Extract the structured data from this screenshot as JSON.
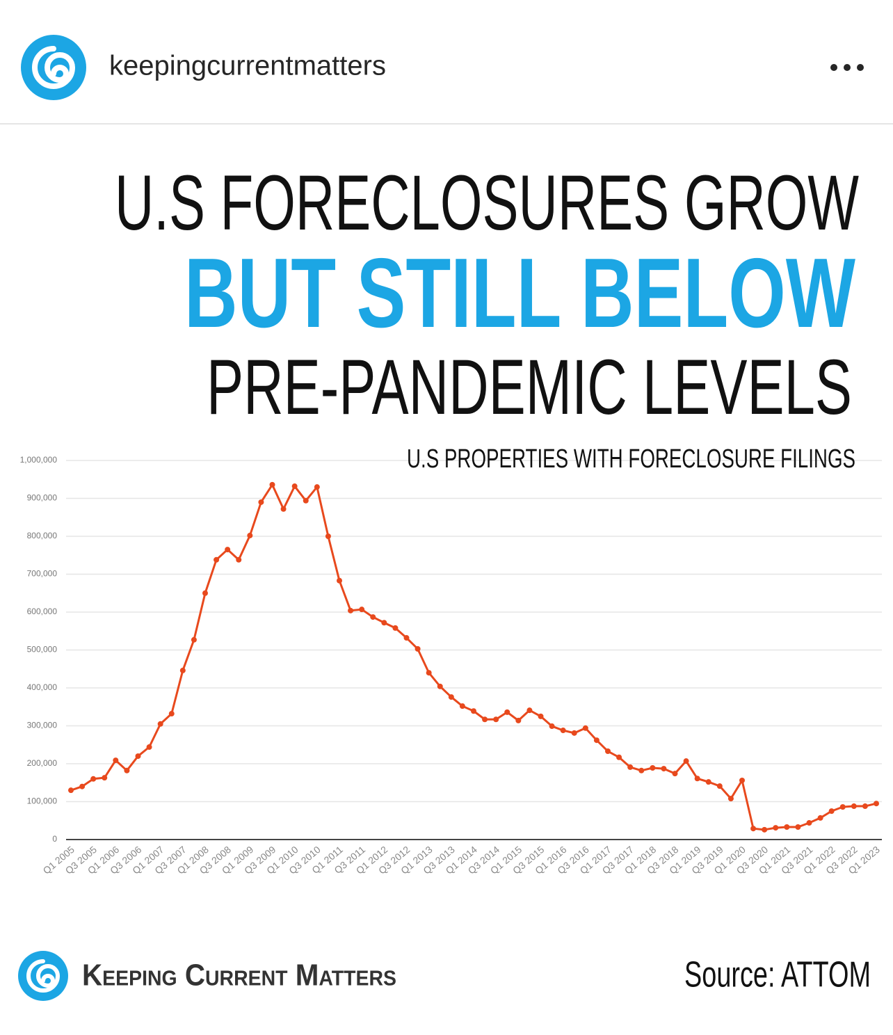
{
  "post": {
    "username": "keepingcurrentmatters"
  },
  "chart_data": {
    "type": "line",
    "title": [
      "U.S FORECLOSURES GROW",
      "BUT STILL BELOW",
      "PRE-PANDEMIC LEVELS"
    ],
    "subtitle": "U.S PROPERTIES WITH FORECLOSURE FILINGS",
    "categories": [
      "Q1 2005",
      null,
      "Q3 2005",
      null,
      "Q1 2006",
      null,
      "Q3 2006",
      null,
      "Q1 2007",
      null,
      "Q3 2007",
      null,
      "Q1 2008",
      null,
      "Q3 2008",
      null,
      "Q1 2009",
      null,
      "Q3 2009",
      null,
      "Q1 2010",
      null,
      "Q3 2010",
      null,
      "Q1 2011",
      null,
      "Q3 2011",
      null,
      "Q1 2012",
      null,
      "Q3 2012",
      null,
      "Q1 2013",
      null,
      "Q3 2013",
      null,
      "Q1 2014",
      null,
      "Q3 2014",
      null,
      "Q1 2015",
      null,
      "Q3 2015",
      null,
      "Q1 2016",
      null,
      "Q3 2016",
      null,
      "Q1 2017",
      null,
      "Q3 2017",
      null,
      "Q1 2018",
      null,
      "Q3 2018",
      null,
      "Q1 2019",
      null,
      "Q3 2019",
      null,
      "Q1 2020",
      null,
      "Q3 2020",
      null,
      "Q1 2021",
      null,
      "Q3 2021",
      null,
      "Q1 2022",
      null,
      "Q3 2022",
      null,
      "Q1 2023"
    ],
    "values": [
      130000,
      140000,
      160000,
      163000,
      209000,
      182000,
      220000,
      244000,
      305000,
      332000,
      446000,
      527000,
      650000,
      738000,
      765000,
      738000,
      802000,
      890000,
      936000,
      872000,
      932000,
      894000,
      930000,
      800000,
      683000,
      604000,
      607000,
      587000,
      572000,
      558000,
      532000,
      503000,
      440000,
      404000,
      376000,
      352000,
      339000,
      317000,
      317000,
      336000,
      314000,
      341000,
      325000,
      299000,
      288000,
      281000,
      294000,
      262000,
      233000,
      217000,
      191000,
      182000,
      189000,
      187000,
      174000,
      207000,
      161000,
      152000,
      141000,
      108000,
      156000,
      29000,
      26000,
      31000,
      33000,
      33000,
      44000,
      57000,
      75000,
      86000,
      88000,
      88000,
      95000
    ],
    "color": "#e8491d",
    "ylim": [
      0,
      1000000
    ],
    "yticks": [
      0,
      {
        "value": 100000,
        "label": "100,000"
      },
      {
        "value": 200000,
        "label": "200,000"
      },
      {
        "value": 300000,
        "label": "300,000"
      },
      {
        "value": 400000,
        "label": "400,000"
      },
      {
        "value": 500000,
        "label": "500,000"
      },
      {
        "value": 600000,
        "label": "600,000"
      },
      {
        "value": 700000,
        "label": "700,000"
      },
      {
        "value": 800000,
        "label": "800,000"
      },
      {
        "value": 900000,
        "label": "900,000"
      },
      {
        "value": 1000000,
        "label": "1,000,000"
      }
    ],
    "grid": true
  },
  "footer": {
    "brand": "Keeping Current Matters",
    "source": "Source: ATTOM"
  }
}
